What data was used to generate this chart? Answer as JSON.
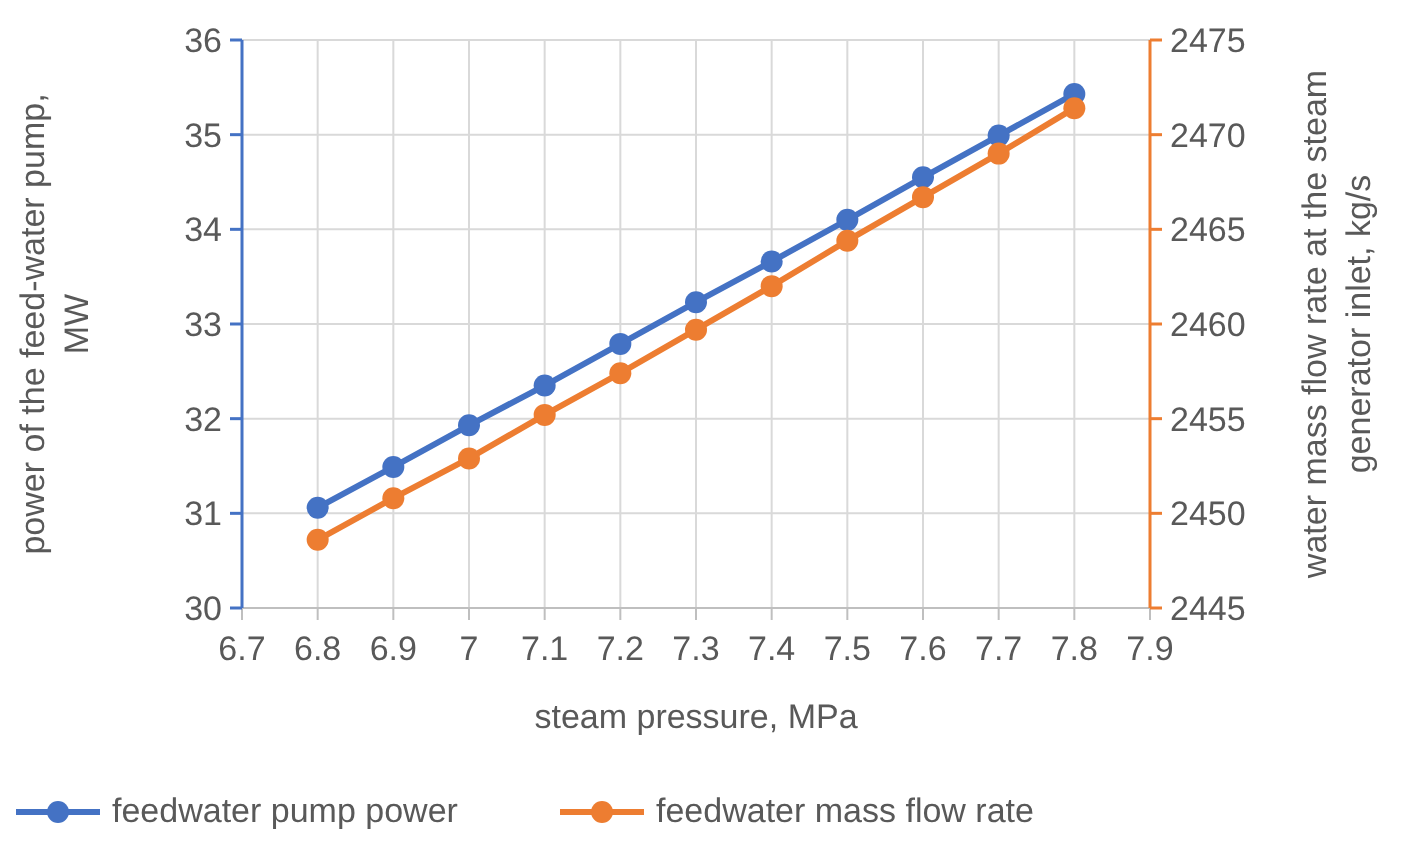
{
  "chart_data": {
    "type": "line",
    "xlabel": "steam pressure, MPa",
    "ylabel": "power of the feed-water pump, MW",
    "y2label": "water mass flow rate at the steam generator inlet, kg/s",
    "x": [
      6.8,
      6.9,
      7.0,
      7.1,
      7.2,
      7.3,
      7.4,
      7.5,
      7.6,
      7.7,
      7.8
    ],
    "series": [
      {
        "name": "feedwater pump power",
        "color": "#4472c4",
        "values": [
          31.06,
          31.49,
          31.93,
          32.35,
          32.79,
          33.23,
          33.66,
          34.1,
          34.55,
          34.99,
          35.43
        ]
      },
      {
        "name": "feedwater mass flow rate",
        "color": "#ed7d31",
        "axis": "y2",
        "values": [
          2448.6,
          2450.8,
          2452.9,
          2455.2,
          2457.4,
          2459.7,
          2462.0,
          2464.4,
          2466.7,
          2469.0,
          2471.4
        ]
      }
    ],
    "xlim": [
      6.7,
      7.9
    ],
    "xticks": [
      {
        "value": 6.7,
        "label": "6.7"
      },
      {
        "value": 6.8,
        "label": "6.8"
      },
      {
        "value": 6.9,
        "label": "6.9"
      },
      {
        "value": 7,
        "label": "7"
      },
      {
        "value": 7.1,
        "label": "7.1"
      },
      {
        "value": 7.2,
        "label": "7.2"
      },
      {
        "value": 7.3,
        "label": "7.3"
      },
      {
        "value": 7.4,
        "label": "7.4"
      },
      {
        "value": 7.5,
        "label": "7.5"
      },
      {
        "value": 7.6,
        "label": "7.6"
      },
      {
        "value": 7.7,
        "label": "7.7"
      },
      {
        "value": 7.8,
        "label": "7.8"
      },
      {
        "value": 7.9,
        "label": "7.9"
      }
    ],
    "ylim": [
      30,
      36
    ],
    "yticks": [
      30,
      31,
      32,
      33,
      34,
      35,
      36
    ],
    "y2lim": [
      2445,
      2475
    ],
    "y2ticks": [
      2445,
      2450,
      2455,
      2460,
      2465,
      2470,
      2475
    ],
    "grid": true,
    "legend": "bottom",
    "marker": "circle",
    "line_style": "solid"
  }
}
